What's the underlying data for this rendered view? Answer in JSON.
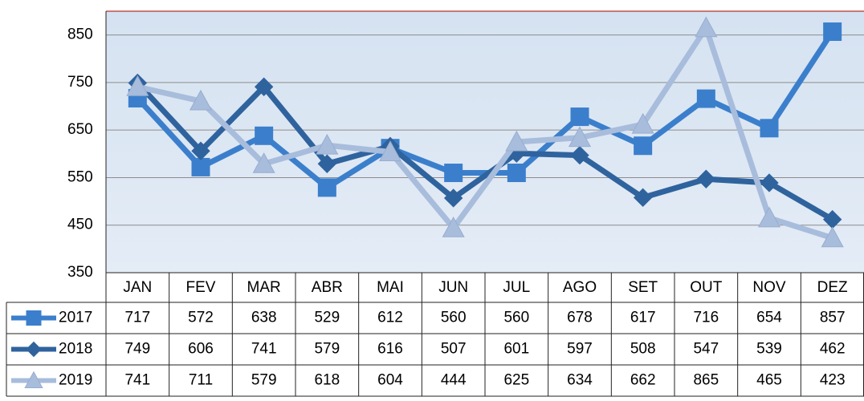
{
  "chart_data": {
    "type": "line",
    "categories": [
      "JAN",
      "FEV",
      "MAR",
      "ABR",
      "MAI",
      "JUN",
      "JUL",
      "AGO",
      "SET",
      "OUT",
      "NOV",
      "DEZ"
    ],
    "series": [
      {
        "name": "2017",
        "color": "#3b7fcc",
        "marker": "square",
        "values": [
          717,
          572,
          638,
          529,
          612,
          560,
          560,
          678,
          617,
          716,
          654,
          857
        ]
      },
      {
        "name": "2018",
        "color": "#2f639e",
        "marker": "diamond",
        "values": [
          749,
          606,
          741,
          579,
          616,
          507,
          601,
          597,
          508,
          547,
          539,
          462
        ]
      },
      {
        "name": "2019",
        "color": "#a8bcdc",
        "marker": "triangle",
        "values": [
          741,
          711,
          579,
          618,
          604,
          444,
          625,
          634,
          662,
          865,
          465,
          423
        ]
      }
    ],
    "ylim": [
      350,
      900
    ],
    "yticks": [
      350,
      450,
      550,
      650,
      750,
      850
    ],
    "grid": true
  }
}
